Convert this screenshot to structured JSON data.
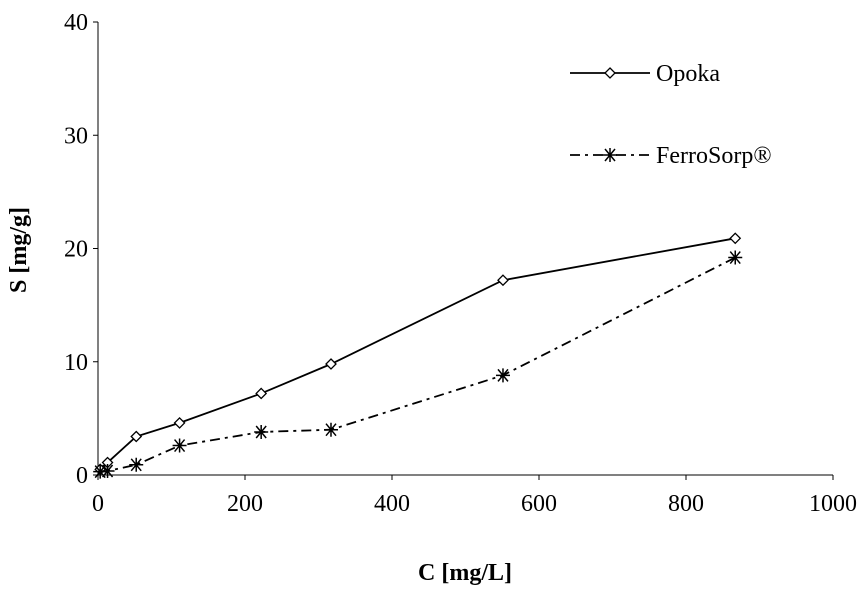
{
  "chart_data": {
    "type": "line",
    "xlabel": "C [mg/L]",
    "ylabel": "S [mg/g]",
    "xlim": [
      0,
      1000
    ],
    "xticks": [
      0,
      200,
      400,
      600,
      800,
      1000
    ],
    "ylim": [
      0,
      40
    ],
    "yticks": [
      0,
      10,
      20,
      30,
      40
    ],
    "grid": false,
    "legend": "upper right",
    "series": [
      {
        "name": "Opoka",
        "color": "#000000",
        "line_style": "solid",
        "marker": "diamond",
        "x": [
          3,
          13,
          52,
          111,
          222,
          317,
          551,
          867
        ],
        "values": [
          0.5,
          1.1,
          3.4,
          4.6,
          7.2,
          9.8,
          17.2,
          20.9
        ]
      },
      {
        "name": "FerroSorp®",
        "color": "#000000",
        "line_style": "dashdot",
        "marker": "asterisk",
        "x": [
          3,
          13,
          52,
          111,
          222,
          317,
          551,
          867
        ],
        "values": [
          0.3,
          0.35,
          0.9,
          2.6,
          3.8,
          4.0,
          8.8,
          19.2
        ]
      }
    ]
  }
}
